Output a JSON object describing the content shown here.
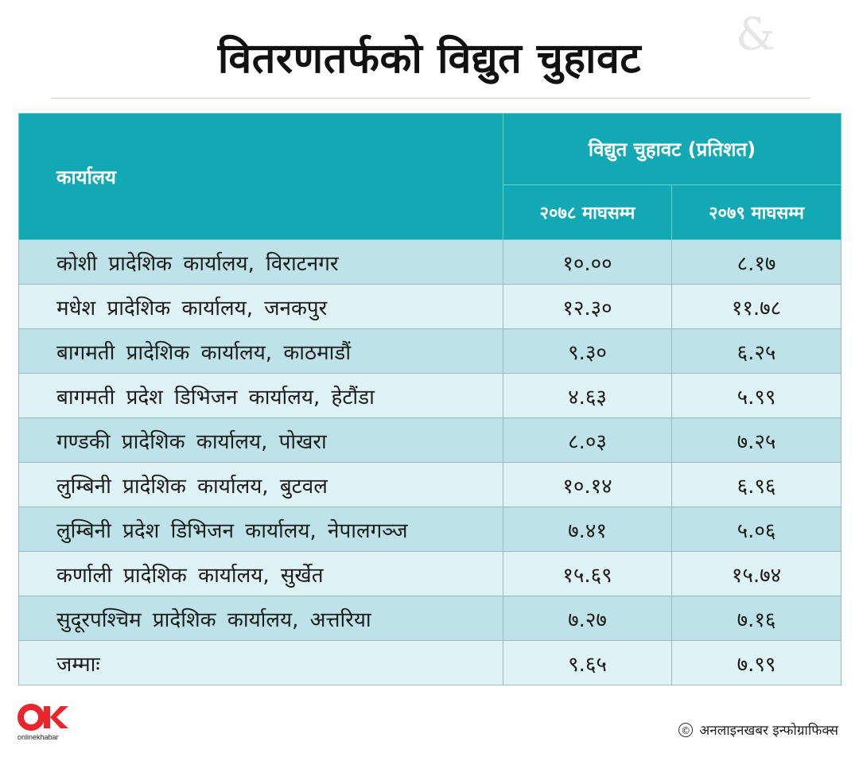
{
  "title": "वितरणतर्फको विद्युत चुहावट",
  "table": {
    "office_header": "कार्यालय",
    "group_header": "विद्युत चुहावट (प्रतिशत)",
    "year_headers": [
      "२०७८ माघसम्म",
      "२०७९ माघसम्म"
    ],
    "rows": [
      {
        "office": "कोशी प्रादेशिक कार्यालय, विराटनगर",
        "v1": "१०.००",
        "v2": "८.१७"
      },
      {
        "office": "मधेश प्रादेशिक कार्यालय, जनकपुर",
        "v1": "१२.३०",
        "v2": "११.७८"
      },
      {
        "office": "बागमती प्रादेशिक कार्यालय, काठमाडौं",
        "v1": "९.३०",
        "v2": "६.२५"
      },
      {
        "office": "बागमती प्रदेश डिभिजन कार्यालय, हेटौंडा",
        "v1": "४.६३",
        "v2": "५.९९"
      },
      {
        "office": "गण्डकी प्रादेशिक कार्यालय, पोखरा",
        "v1": "८.०३",
        "v2": "७.२५"
      },
      {
        "office": "लुम्बिनी प्रादेशिक कार्यालय, बुटवल",
        "v1": "१०.१४",
        "v2": "६.९६"
      },
      {
        "office": "लुम्बिनी प्रदेश डिभिजन कार्यालय, नेपालगञ्ज",
        "v1": "७.४१",
        "v2": "५.०६"
      },
      {
        "office": "कर्णाली प्रादेशिक कार्यालय, सुर्खेत",
        "v1": "१५.६९",
        "v2": "१५.७४"
      },
      {
        "office": "सुदूरपश्चिम प्रादेशिक कार्यालय, अत्तरिया",
        "v1": "७.२७",
        "v2": "७.१६"
      },
      {
        "office": "जम्माः",
        "v1": "९.६५",
        "v2": "७.९९"
      }
    ]
  },
  "footer": {
    "logo_text": "onlinekhabar",
    "copyright_symbol": "©",
    "credit": "अनलाइनखबर इन्फोग्राफिक्स"
  },
  "colors": {
    "header_bg": "#12a9b5",
    "row_dark": "#bde3e8",
    "row_light": "#dff2f5",
    "logo_red": "#e8262b"
  }
}
